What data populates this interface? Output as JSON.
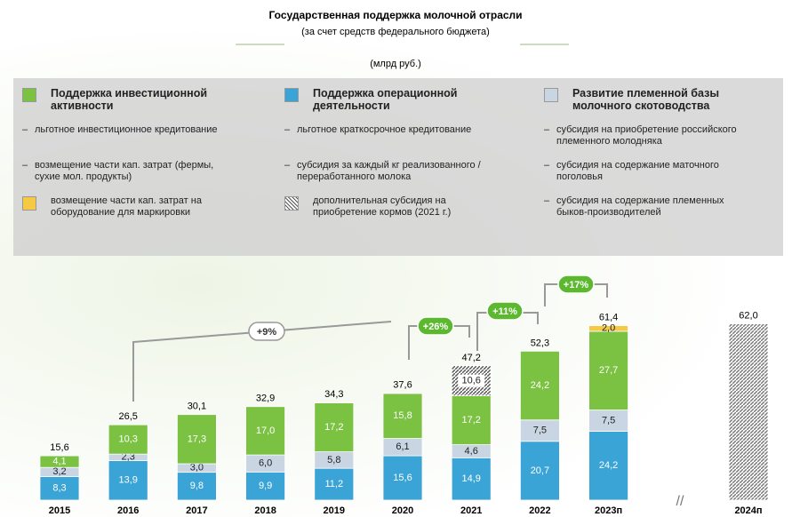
{
  "chart_data": {
    "type": "bar",
    "stacked": true,
    "title": "Государственная поддержка молочной отрасли",
    "subtitle": "(за счет средств федерального бюджета)",
    "unit": "(млрд руб.)",
    "categories": [
      "2015",
      "2016",
      "2017",
      "2018",
      "2019",
      "2020",
      "2021",
      "2022",
      "2023п",
      "2024п"
    ],
    "series": [
      {
        "name": "Поддержка операционной деятельности",
        "color": "#3ba4d6",
        "label_color": "#ffffff",
        "values": [
          8.3,
          13.9,
          9.8,
          9.9,
          11.2,
          15.6,
          14.9,
          20.7,
          24.2,
          null
        ],
        "value_labels": [
          "8,3",
          "13,9",
          "9,8",
          "9,9",
          "11,2",
          "15,6",
          "14,9",
          "20,7",
          "24,2",
          null
        ]
      },
      {
        "name": "Развитие племенной базы молочного скотоводства",
        "color": "#c9d5e3",
        "label_color": "#222222",
        "values": [
          3.2,
          2.3,
          3.0,
          6.0,
          5.8,
          6.1,
          4.6,
          7.5,
          7.5,
          null
        ],
        "value_labels": [
          "3,2",
          "2,3",
          "3,0",
          "6,0",
          "5,8",
          "6,1",
          "4,6",
          "7,5",
          "7,5",
          null
        ]
      },
      {
        "name": "Поддержка инвестиционной активности",
        "color": "#7cc242",
        "label_color": "#ffffff",
        "values": [
          4.1,
          10.3,
          17.3,
          17.0,
          17.2,
          15.8,
          17.2,
          24.2,
          27.7,
          null
        ],
        "value_labels": [
          "4,1",
          "10,3",
          "17,3",
          "17,0",
          "17,2",
          "15,8",
          "17,2",
          "24,2",
          "27,7",
          null
        ]
      },
      {
        "name": "дополнительная субсидия на приобретение кормов (2021 г.)",
        "color": "#555555",
        "hatch": true,
        "label_color": "#222222",
        "values": [
          null,
          null,
          null,
          null,
          null,
          null,
          10.6,
          null,
          null,
          null
        ],
        "value_labels": [
          null,
          null,
          null,
          null,
          null,
          null,
          "10,6",
          null,
          null,
          null
        ]
      },
      {
        "name": "возмещение части кап. затрат на оборудование для маркировки",
        "color": "#f6c945",
        "label_color": "#222222",
        "values": [
          null,
          null,
          null,
          null,
          null,
          null,
          null,
          null,
          2.0,
          null
        ],
        "value_labels": [
          null,
          null,
          null,
          null,
          null,
          null,
          null,
          null,
          "2,0",
          null
        ]
      },
      {
        "color": "#777777",
        "hatch": true,
        "values": [
          null,
          null,
          null,
          null,
          null,
          null,
          null,
          null,
          null,
          62.0
        ]
      }
    ],
    "totals": {
      "values": [
        15.6,
        26.5,
        30.1,
        32.9,
        34.3,
        37.6,
        47.2,
        52.3,
        61.4,
        62.0
      ],
      "value_labels": [
        "15,6",
        "26,5",
        "30,1",
        "32,9",
        "34,3",
        "37,6",
        "47,2",
        "52,3",
        "61,4",
        "62,0"
      ]
    },
    "annotations": [
      "+9%",
      "+26%",
      "+11%",
      "+17%"
    ],
    "legend_details": [
      [
        "льготное инвестиционное кредитование",
        "возмещение части кап. затрат (фермы, сухие мол. продукты)"
      ],
      [
        "льготное краткосрочное кредитование",
        "субсидия за каждый кг реализованного / переработанного молока"
      ],
      [
        "субсидия на приобретение российского племенного молодняка",
        "субсидия на содержание маточного поголовья",
        "субсидия на содержание племенных быков-производителей"
      ]
    ]
  }
}
